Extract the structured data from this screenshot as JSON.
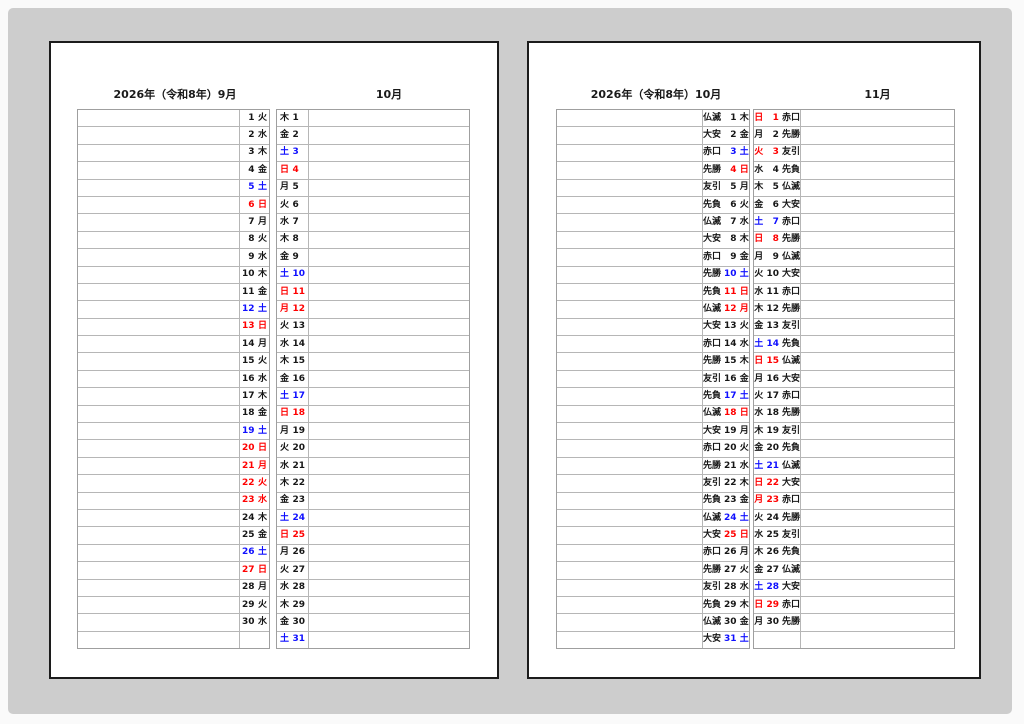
{
  "colors": {
    "holiday_red": "#ff0000",
    "saturday_blue": "#0f0fff",
    "text_black": "#161616",
    "grid_border": "#b6b6b6",
    "page_border": "#1c1c1c",
    "panel_bg": "#cdcdcd",
    "page_bg": "#ffffff"
  },
  "left_page": {
    "title": "2026年（令和8年）9月",
    "secondary_month": "10月",
    "september_rows": [
      [
        "1",
        "火",
        "k"
      ],
      [
        "2",
        "水",
        "k"
      ],
      [
        "3",
        "木",
        "k"
      ],
      [
        "4",
        "金",
        "k"
      ],
      [
        "5",
        "土",
        "b"
      ],
      [
        "6",
        "日",
        "r"
      ],
      [
        "7",
        "月",
        "k"
      ],
      [
        "8",
        "火",
        "k"
      ],
      [
        "9",
        "水",
        "k"
      ],
      [
        "10",
        "木",
        "k"
      ],
      [
        "11",
        "金",
        "k"
      ],
      [
        "12",
        "土",
        "b"
      ],
      [
        "13",
        "日",
        "r"
      ],
      [
        "14",
        "月",
        "k"
      ],
      [
        "15",
        "火",
        "k"
      ],
      [
        "16",
        "水",
        "k"
      ],
      [
        "17",
        "木",
        "k"
      ],
      [
        "18",
        "金",
        "k"
      ],
      [
        "19",
        "土",
        "b"
      ],
      [
        "20",
        "日",
        "r"
      ],
      [
        "21",
        "月",
        "r"
      ],
      [
        "22",
        "火",
        "r"
      ],
      [
        "23",
        "水",
        "r"
      ],
      [
        "24",
        "木",
        "k"
      ],
      [
        "25",
        "金",
        "k"
      ],
      [
        "26",
        "土",
        "b"
      ],
      [
        "27",
        "日",
        "r"
      ],
      [
        "28",
        "月",
        "k"
      ],
      [
        "29",
        "火",
        "k"
      ],
      [
        "30",
        "水",
        "k"
      ],
      null
    ],
    "october_rows": [
      [
        "木",
        "1",
        "k"
      ],
      [
        "金",
        "2",
        "k"
      ],
      [
        "土",
        "3",
        "b"
      ],
      [
        "日",
        "4",
        "r"
      ],
      [
        "月",
        "5",
        "k"
      ],
      [
        "火",
        "6",
        "k"
      ],
      [
        "水",
        "7",
        "k"
      ],
      [
        "木",
        "8",
        "k"
      ],
      [
        "金",
        "9",
        "k"
      ],
      [
        "土",
        "10",
        "b"
      ],
      [
        "日",
        "11",
        "r"
      ],
      [
        "月",
        "12",
        "r"
      ],
      [
        "火",
        "13",
        "k"
      ],
      [
        "水",
        "14",
        "k"
      ],
      [
        "木",
        "15",
        "k"
      ],
      [
        "金",
        "16",
        "k"
      ],
      [
        "土",
        "17",
        "b"
      ],
      [
        "日",
        "18",
        "r"
      ],
      [
        "月",
        "19",
        "k"
      ],
      [
        "火",
        "20",
        "k"
      ],
      [
        "水",
        "21",
        "k"
      ],
      [
        "木",
        "22",
        "k"
      ],
      [
        "金",
        "23",
        "k"
      ],
      [
        "土",
        "24",
        "b"
      ],
      [
        "日",
        "25",
        "r"
      ],
      [
        "月",
        "26",
        "k"
      ],
      [
        "火",
        "27",
        "k"
      ],
      [
        "水",
        "28",
        "k"
      ],
      [
        "木",
        "29",
        "k"
      ],
      [
        "金",
        "30",
        "k"
      ],
      [
        "土",
        "31",
        "b"
      ]
    ]
  },
  "right_page": {
    "title": "2026年（令和8年）10月",
    "secondary_month": "11月",
    "october_rows": [
      [
        "仏滅",
        "1",
        "木",
        "k"
      ],
      [
        "大安",
        "2",
        "金",
        "k"
      ],
      [
        "赤口",
        "3",
        "土",
        "b"
      ],
      [
        "先勝",
        "4",
        "日",
        "r"
      ],
      [
        "友引",
        "5",
        "月",
        "k"
      ],
      [
        "先負",
        "6",
        "火",
        "k"
      ],
      [
        "仏滅",
        "7",
        "水",
        "k"
      ],
      [
        "大安",
        "8",
        "木",
        "k"
      ],
      [
        "赤口",
        "9",
        "金",
        "k"
      ],
      [
        "先勝",
        "10",
        "土",
        "b"
      ],
      [
        "先負",
        "11",
        "日",
        "r"
      ],
      [
        "仏滅",
        "12",
        "月",
        "r"
      ],
      [
        "大安",
        "13",
        "火",
        "k"
      ],
      [
        "赤口",
        "14",
        "水",
        "k"
      ],
      [
        "先勝",
        "15",
        "木",
        "k"
      ],
      [
        "友引",
        "16",
        "金",
        "k"
      ],
      [
        "先負",
        "17",
        "土",
        "b"
      ],
      [
        "仏滅",
        "18",
        "日",
        "r"
      ],
      [
        "大安",
        "19",
        "月",
        "k"
      ],
      [
        "赤口",
        "20",
        "火",
        "k"
      ],
      [
        "先勝",
        "21",
        "水",
        "k"
      ],
      [
        "友引",
        "22",
        "木",
        "k"
      ],
      [
        "先負",
        "23",
        "金",
        "k"
      ],
      [
        "仏滅",
        "24",
        "土",
        "b"
      ],
      [
        "大安",
        "25",
        "日",
        "r"
      ],
      [
        "赤口",
        "26",
        "月",
        "k"
      ],
      [
        "先勝",
        "27",
        "火",
        "k"
      ],
      [
        "友引",
        "28",
        "水",
        "k"
      ],
      [
        "先負",
        "29",
        "木",
        "k"
      ],
      [
        "仏滅",
        "30",
        "金",
        "k"
      ],
      [
        "大安",
        "31",
        "土",
        "b"
      ]
    ],
    "november_rows": [
      [
        "日",
        "1",
        "赤口",
        "r"
      ],
      [
        "月",
        "2",
        "先勝",
        "k"
      ],
      [
        "火",
        "3",
        "友引",
        "r"
      ],
      [
        "水",
        "4",
        "先負",
        "k"
      ],
      [
        "木",
        "5",
        "仏滅",
        "k"
      ],
      [
        "金",
        "6",
        "大安",
        "k"
      ],
      [
        "土",
        "7",
        "赤口",
        "b"
      ],
      [
        "日",
        "8",
        "先勝",
        "r"
      ],
      [
        "月",
        "9",
        "仏滅",
        "k"
      ],
      [
        "火",
        "10",
        "大安",
        "k"
      ],
      [
        "水",
        "11",
        "赤口",
        "k"
      ],
      [
        "木",
        "12",
        "先勝",
        "k"
      ],
      [
        "金",
        "13",
        "友引",
        "k"
      ],
      [
        "土",
        "14",
        "先負",
        "b"
      ],
      [
        "日",
        "15",
        "仏滅",
        "r"
      ],
      [
        "月",
        "16",
        "大安",
        "k"
      ],
      [
        "火",
        "17",
        "赤口",
        "k"
      ],
      [
        "水",
        "18",
        "先勝",
        "k"
      ],
      [
        "木",
        "19",
        "友引",
        "k"
      ],
      [
        "金",
        "20",
        "先負",
        "k"
      ],
      [
        "土",
        "21",
        "仏滅",
        "b"
      ],
      [
        "日",
        "22",
        "大安",
        "r"
      ],
      [
        "月",
        "23",
        "赤口",
        "r"
      ],
      [
        "火",
        "24",
        "先勝",
        "k"
      ],
      [
        "水",
        "25",
        "友引",
        "k"
      ],
      [
        "木",
        "26",
        "先負",
        "k"
      ],
      [
        "金",
        "27",
        "仏滅",
        "k"
      ],
      [
        "土",
        "28",
        "大安",
        "b"
      ],
      [
        "日",
        "29",
        "赤口",
        "r"
      ],
      [
        "月",
        "30",
        "先勝",
        "k"
      ],
      null
    ]
  }
}
